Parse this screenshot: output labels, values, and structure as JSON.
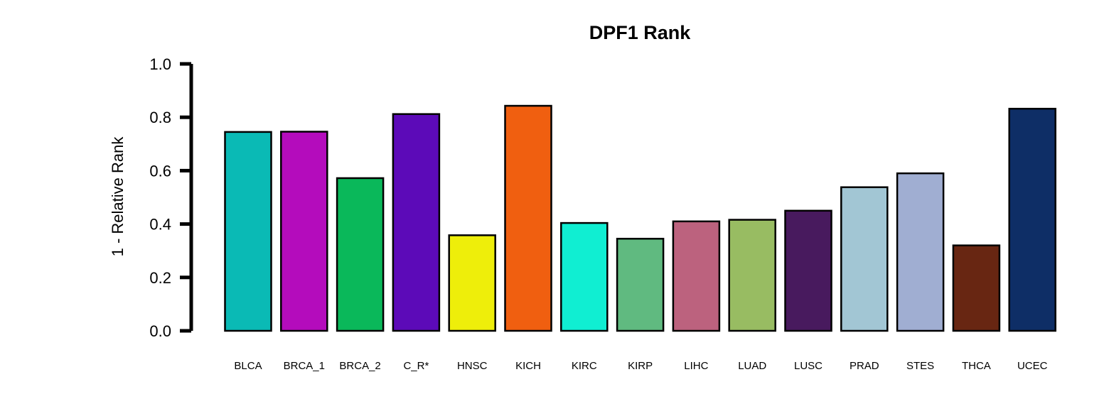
{
  "chart_data": {
    "type": "bar",
    "title": "DPF1 Rank",
    "xlabel": "",
    "ylabel": "1 - Relative Rank",
    "ylim": [
      0,
      1.0
    ],
    "yticks": [
      "0.0",
      "0.2",
      "0.4",
      "0.6",
      "0.8",
      "1.0"
    ],
    "grid": false,
    "legend": "none",
    "categories": [
      "BLCA",
      "BRCA_1",
      "BRCA_2",
      "C_R*",
      "HNSC",
      "KICH",
      "KIRC",
      "KIRP",
      "LIHC",
      "LUAD",
      "LUSC",
      "PRAD",
      "STES",
      "THCA",
      "UCEC"
    ],
    "values": [
      0.745,
      0.746,
      0.572,
      0.812,
      0.358,
      0.843,
      0.404,
      0.345,
      0.41,
      0.416,
      0.45,
      0.538,
      0.59,
      0.32,
      0.832
    ],
    "colors": [
      "#0ABAB5",
      "#B40CBC",
      "#0AB85A",
      "#5C0AB8",
      "#EEEE0A",
      "#F05F10",
      "#10EED2",
      "#60BA80",
      "#BC627E",
      "#98BC62",
      "#481A5E",
      "#A2C6D4",
      "#A0AED2",
      "#682612",
      "#0E2E66"
    ]
  }
}
